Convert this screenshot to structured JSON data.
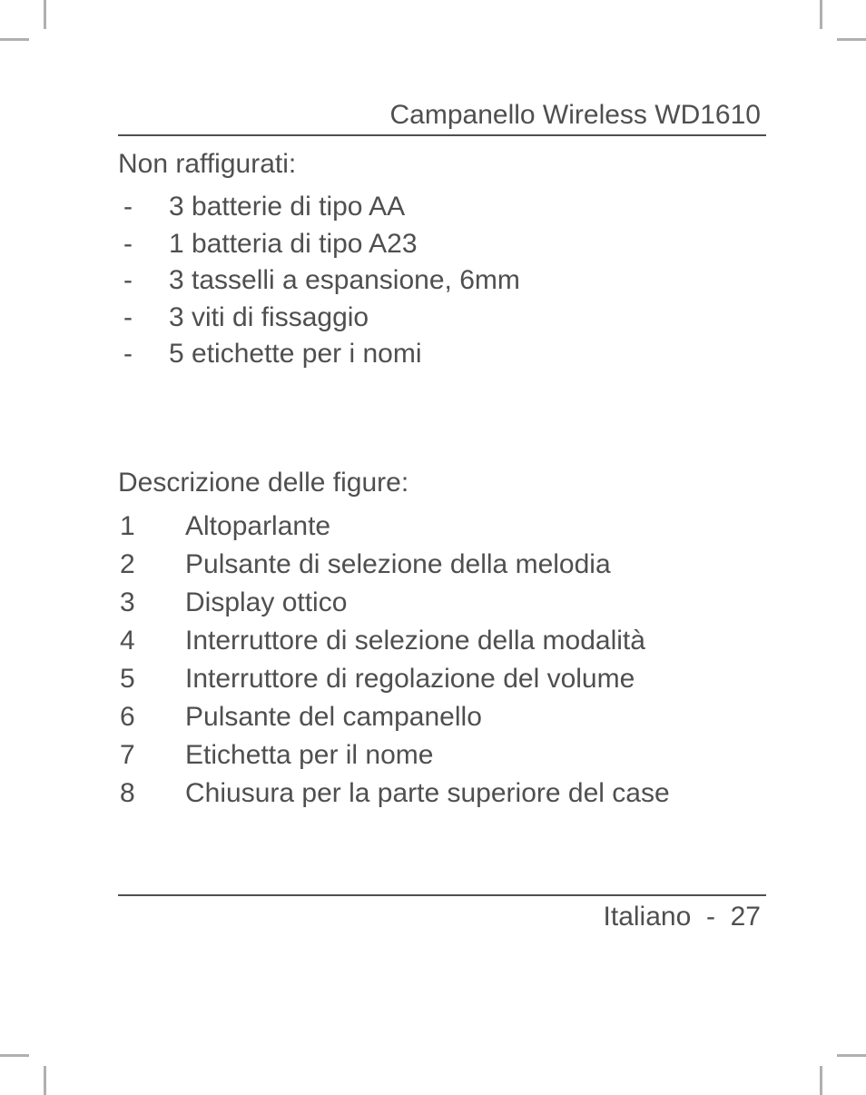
{
  "colors": {
    "text": "#4f4f4f",
    "rule": "#4f4f4f",
    "crop_mark": "#b0b0b0",
    "background": "#ffffff"
  },
  "typography": {
    "body_fontsize_pt": 22,
    "font_family": "Arial"
  },
  "header": {
    "title": "Campanello Wireless WD1610"
  },
  "not_shown": {
    "heading": "Non raffigurati:",
    "items": [
      "3 batterie di tipo AA",
      "1 batteria di tipo A23",
      "3 tasselli a espansione, 6mm",
      "3 viti di fissaggio",
      "5 etichette per i nomi"
    ]
  },
  "figures": {
    "heading": "Descrizione delle figure:",
    "items": [
      {
        "num": "1",
        "text": "Altoparlante"
      },
      {
        "num": "2",
        "text": "Pulsante di selezione della melodia"
      },
      {
        "num": "3",
        "text": "Display ottico"
      },
      {
        "num": "4",
        "text": "Interruttore di selezione della modalità"
      },
      {
        "num": "5",
        "text": "Interruttore di regolazione del volume"
      },
      {
        "num": "6",
        "text": "Pulsante del campanello"
      },
      {
        "num": "7",
        "text": "Etichetta per il nome"
      },
      {
        "num": "8",
        "text": "Chiusura per la parte superiore del case"
      }
    ]
  },
  "footer": {
    "language": "Italiano",
    "separator": "-",
    "page_number": "27"
  }
}
